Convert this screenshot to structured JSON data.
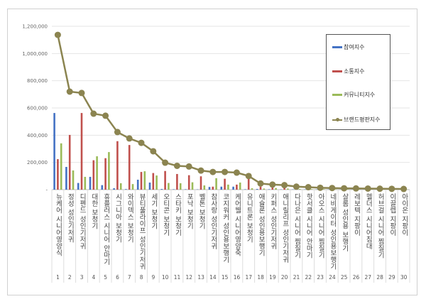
{
  "chart_data": {
    "type": "bar+line",
    "title": "",
    "categories": [
      "뉴케어 시니어영양식",
      "정성 성인기저귀",
      "디펜드 성인기저귀",
      "대한 보청기",
      "휴플러스 시니어 안마기",
      "시그니아 보청기",
      "와이덱스 보청기",
      "뷰티풀라이프 성인기저귀",
      "세기 보청기",
      "오티콘 보청기",
      "스타키 보청기",
      "포낙 보청기",
      "벨톤 보청기",
      "참사랑 성인기저귀",
      "코지워커 성인용보행기",
      "케어웰 시니어영양죽",
      "유니트론 보청기",
      "애슐론 성인용보행기",
      "키퍼스 성인기저귀",
      "애니릴리프 성인기저귀",
      "다나은 시니어 찜질기",
      "핫서클 시니어 안마기",
      "아오스 시니어 찜질기",
      "네비게이터 성인용보행기",
      "살롬 성인용 보행기",
      "레보텍 지팡이",
      "헬더스 시니어침대",
      "허브걸 시니어 찜질기",
      "이끌렙 지팡이",
      "아이온 지팡이"
    ],
    "category_numbers": [
      "1",
      "2",
      "3",
      "4",
      "5",
      "6",
      "7",
      "8",
      "9",
      "10",
      "11",
      "12",
      "13",
      "14",
      "15",
      "16",
      "17",
      "18",
      "19",
      "20",
      "21",
      "22",
      "23",
      "24",
      "25",
      "26",
      "27",
      "28",
      "29",
      "30"
    ],
    "series": [
      {
        "name": "참여지수",
        "type": "bar",
        "color": "#4472c4",
        "values": [
          563000,
          167000,
          49000,
          94000,
          33000,
          10000,
          4000,
          73000,
          52000,
          5000,
          3000,
          3000,
          2000,
          20000,
          22000,
          22000,
          3000,
          5000,
          3000,
          2000,
          2000,
          2000,
          2000,
          2000,
          1000,
          1000,
          1000,
          1000,
          1000,
          1000
        ]
      },
      {
        "name": "소통지수",
        "type": "bar",
        "color": "#c0504d",
        "values": [
          224000,
          402000,
          563000,
          216000,
          231000,
          356000,
          328000,
          130000,
          122000,
          137000,
          115000,
          106000,
          98000,
          22000,
          80000,
          37000,
          83000,
          22000,
          15000,
          12000,
          8000,
          6000,
          5000,
          4000,
          4000,
          3000,
          3000,
          2000,
          2000,
          2000
        ]
      },
      {
        "name": "커뮤니티지수",
        "type": "bar",
        "color": "#9bbb59",
        "values": [
          340000,
          141000,
          94000,
          245000,
          276000,
          47000,
          41000,
          135000,
          104000,
          49000,
          47000,
          54000,
          31000,
          84000,
          37000,
          52000,
          10000,
          8000,
          12000,
          8000,
          5000,
          4000,
          4000,
          3000,
          3000,
          2000,
          2000,
          2000,
          2000,
          1000
        ]
      },
      {
        "name": "브랜드평판지수",
        "type": "line",
        "color": "#8b8450",
        "values": [
          1137000,
          720000,
          710000,
          558000,
          543000,
          423000,
          376000,
          344000,
          282000,
          198000,
          175000,
          170000,
          140000,
          130000,
          130000,
          125000,
          100000,
          45000,
          37000,
          33000,
          22000,
          18000,
          14000,
          12000,
          10000,
          9000,
          8000,
          7000,
          6000,
          5000
        ]
      }
    ],
    "yticks": [
      0,
      200000,
      400000,
      600000,
      800000,
      1000000,
      1200000
    ],
    "ytick_labels": [
      "-",
      "200,000",
      "400,000",
      "600,000",
      "800,000",
      "1,000,000",
      "1,200,000"
    ],
    "ylim": [
      0,
      1200000
    ],
    "xlabel": "",
    "ylabel": "",
    "grid": "horizontal",
    "legend_position": "right"
  }
}
